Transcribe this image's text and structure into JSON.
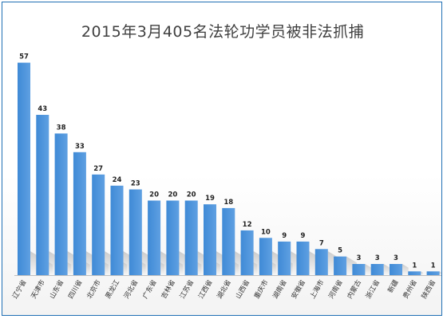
{
  "chart_data": {
    "type": "bar",
    "title": "2015年3月405名法轮功学员被非法抓捕",
    "categories": [
      "辽宁省",
      "天津市",
      "山东省",
      "四川省",
      "北京市",
      "黑龙江",
      "河北省",
      "广东省",
      "吉林省",
      "江苏省",
      "江西省",
      "湖北省",
      "山西省",
      "重庆市",
      "湖南省",
      "安徽省",
      "上海市",
      "河南省",
      "内蒙古",
      "浙江省",
      "新疆",
      "贵州省",
      "陕西省"
    ],
    "values": [
      57,
      43,
      38,
      33,
      27,
      24,
      23,
      20,
      20,
      20,
      19,
      18,
      12,
      10,
      9,
      9,
      7,
      5,
      3,
      3,
      3,
      1,
      1
    ],
    "ylim": [
      0,
      60
    ],
    "grid": false,
    "legend": "none",
    "bar_color": "#3f8ad6",
    "bar_color_light": "#5fa0e2"
  }
}
